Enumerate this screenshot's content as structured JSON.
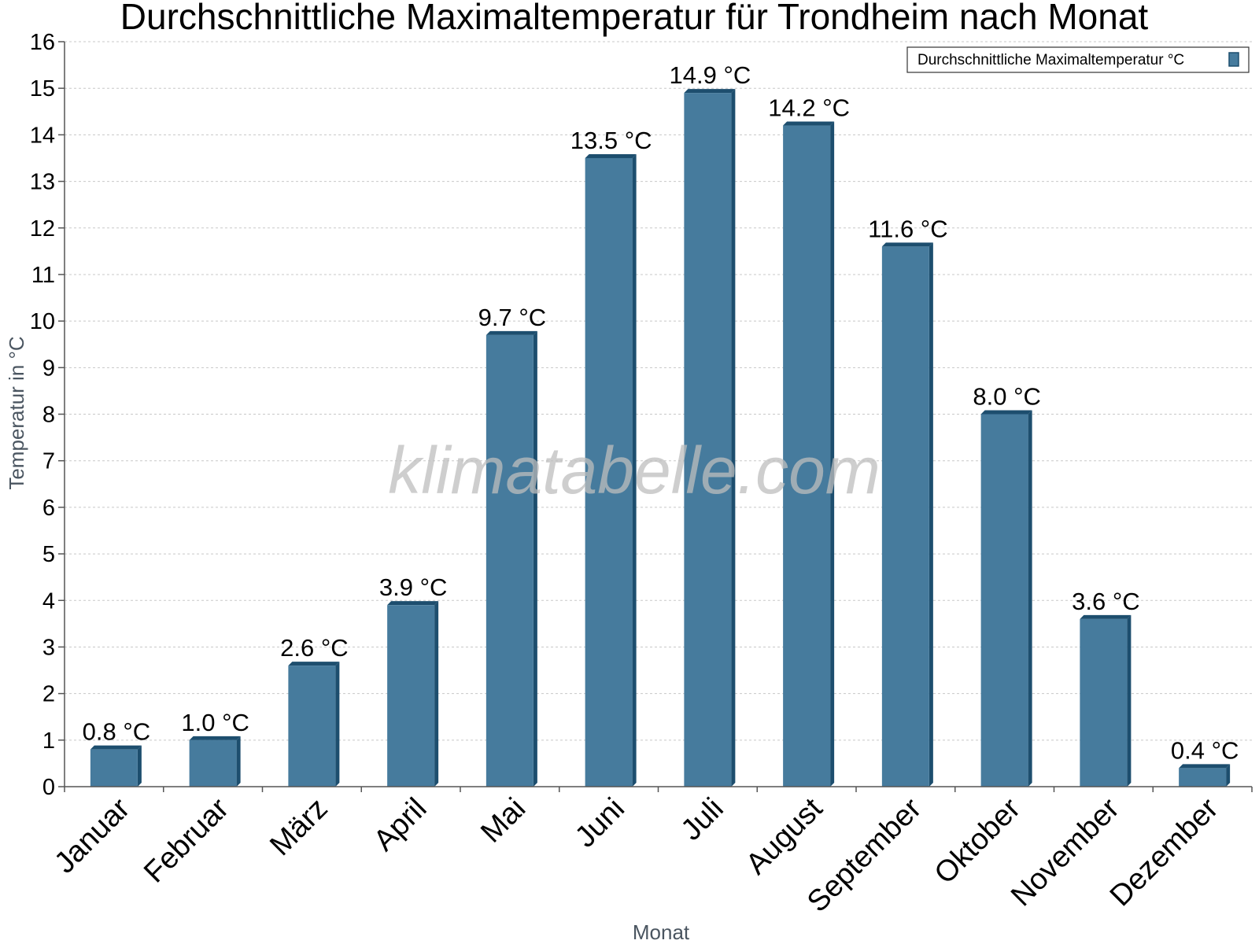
{
  "chart_data": {
    "type": "bar",
    "title": "Durchschnittliche Maximaltemperatur für Trondheim nach Monat",
    "xlabel": "Monat",
    "ylabel": "Temperatur in °C",
    "categories": [
      "Januar",
      "Februar",
      "März",
      "April",
      "Mai",
      "Juni",
      "Juli",
      "August",
      "September",
      "Oktober",
      "November",
      "Dezember"
    ],
    "series": [
      {
        "name": "Durchschnittliche Maximaltemperatur °C",
        "values": [
          0.8,
          1.0,
          2.6,
          3.9,
          9.7,
          13.5,
          14.9,
          14.2,
          11.6,
          8.0,
          3.6,
          0.4
        ],
        "labels": [
          "0.8 °C",
          "1.0 °C",
          "2.6 °C",
          "3.9 °C",
          "9.7 °C",
          "13.5 °C",
          "14.9 °C",
          "14.2 °C",
          "11.6 °C",
          "8.0 °C",
          "3.6 °C",
          "0.4 °C"
        ],
        "color": "#467b9d",
        "edge_color": "#1d4e6e"
      }
    ],
    "ylim": [
      0,
      16
    ],
    "yticks": [
      0,
      1,
      2,
      3,
      4,
      5,
      6,
      7,
      8,
      9,
      10,
      11,
      12,
      13,
      14,
      15,
      16
    ],
    "grid": true,
    "legend": "top-right"
  },
  "watermark": "klimatabelle.com"
}
